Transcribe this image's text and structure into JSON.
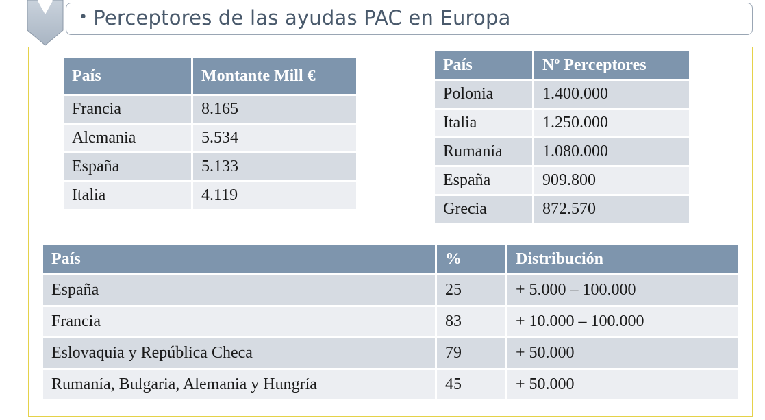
{
  "header": {
    "bullet": "•",
    "title": "Perceptores de las ayudas PAC en Europa"
  },
  "table_amounts": {
    "headers": [
      "País",
      "Montante Mill €"
    ],
    "rows": [
      [
        "Francia",
        "8.165"
      ],
      [
        "Alemania",
        "5.534"
      ],
      [
        "España",
        "5.133"
      ],
      [
        "Italia",
        "4.119"
      ]
    ]
  },
  "table_recipients": {
    "headers": [
      "País",
      "Nº Perceptores"
    ],
    "rows": [
      [
        "Polonia",
        "1.400.000"
      ],
      [
        "Italia",
        "1.250.000"
      ],
      [
        "Rumanía",
        "1.080.000"
      ],
      [
        "España",
        "909.800"
      ],
      [
        "Grecia",
        "872.570"
      ]
    ]
  },
  "table_distribution": {
    "headers": [
      "País",
      "%",
      "Distribución"
    ],
    "rows": [
      [
        "España",
        "25",
        "+ 5.000 – 100.000"
      ],
      [
        "Francia",
        "83",
        "+ 10.000 – 100.000"
      ],
      [
        "Eslovaquia y República Checa",
        "79",
        "+ 50.000"
      ],
      [
        "Rumanía, Bulgaria, Alemania y Hungría",
        "45",
        "+ 50.000"
      ]
    ]
  },
  "colors": {
    "header_cell": "#7e95ad",
    "row_dark": "#d6dbe2",
    "row_light": "#eceef2",
    "title_text": "#4a5a6c",
    "frame_border": "#e5d24a"
  }
}
